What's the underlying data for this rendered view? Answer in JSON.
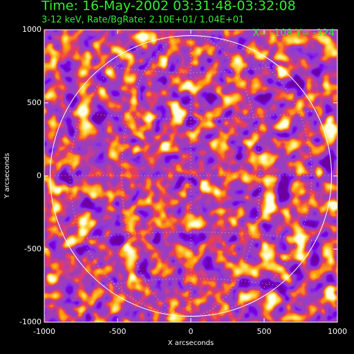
{
  "chart_data": {
    "type": "image",
    "title": "Time: 16-May-2002 03:31:48-03:32:08",
    "subtitle": "3-12 keV, Rate/BgRate:  2.10E+01/  1.04E+01",
    "annotation": "X= -108 Y= -324",
    "xlabel": "X arcseconds",
    "ylabel": "Y arcseconds",
    "xlim": [
      -1000,
      1000
    ],
    "ylim": [
      -1000,
      1000
    ],
    "xticks": [
      -1000,
      -500,
      0,
      500,
      1000
    ],
    "yticks": [
      -1000,
      -500,
      0,
      500,
      1000
    ],
    "limb_radius": 960
  }
}
